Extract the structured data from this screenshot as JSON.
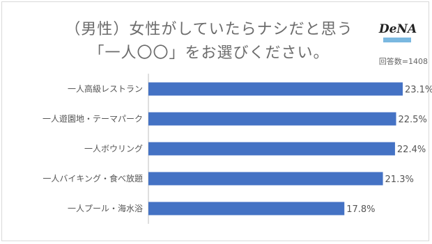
{
  "chart_data": {
    "type": "bar",
    "orientation": "horizontal",
    "title_line1": "（男性）女性がしていたらナシだと思う",
    "title_line2": "「一人〇〇」をお選びください。",
    "respondents_label": "回答数=1408",
    "logo_text": "DeNA",
    "categories": [
      "一人高級レストラン",
      "一人遊園地・テーマパーク",
      "一人ボウリング",
      "一人バイキング・食べ放題",
      "一人プール・海水浴"
    ],
    "values": [
      23.1,
      22.5,
      22.4,
      21.3,
      17.8
    ],
    "value_labels": [
      "23.1%",
      "22.5%",
      "22.4%",
      "21.3%",
      "17.8%"
    ],
    "xlim": [
      0,
      25
    ],
    "bar_color": "#4472c4",
    "grid": false
  }
}
